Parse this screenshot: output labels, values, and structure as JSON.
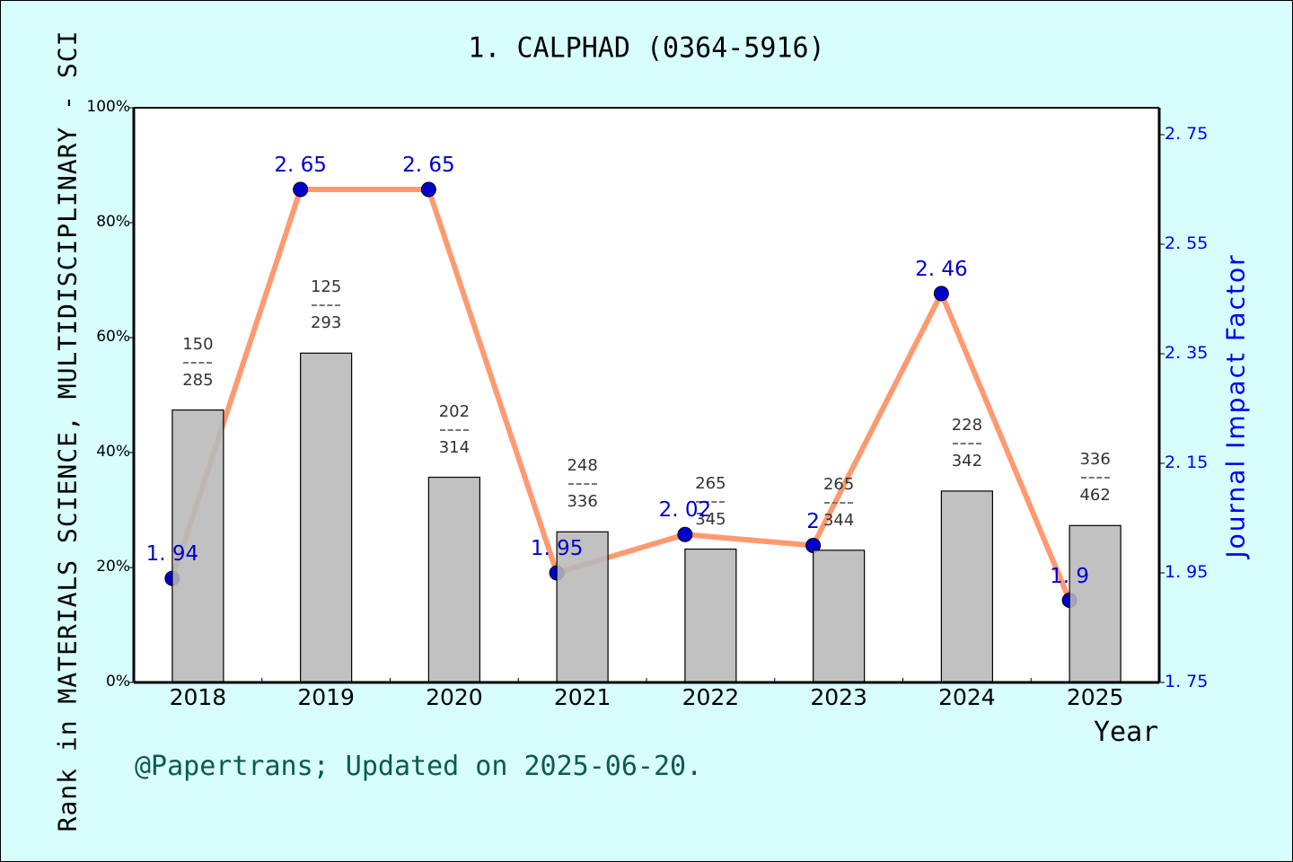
{
  "title": "1. CALPHAD (0364-5916)",
  "left_axis_label": "Rank in MATERIALS SCIENCE, MULTIDISCIPLINARY - SCI",
  "right_axis_label": "Journal Impact Factor",
  "x_axis_label": "Year",
  "footer": "@Papertrans; Updated on 2025-06-20.",
  "colors": {
    "background": "#d7fdfd",
    "plot_background": "#ffffff",
    "bar_fill": "#b8b8b8",
    "line": "#ff9a70",
    "marker": "#0000cc",
    "right_axis": "#0000ee",
    "footer": "#0b5a52"
  },
  "left_ticks": [
    "0%",
    "20%",
    "40%",
    "60%",
    "80%",
    "100%"
  ],
  "right_ticks": [
    "1.75",
    "1.95",
    "2.15",
    "2.35",
    "2.55",
    "2.75"
  ],
  "years": [
    "2018",
    "2019",
    "2020",
    "2021",
    "2022",
    "2023",
    "2024",
    "2025"
  ],
  "fractions": [
    {
      "rank": "150",
      "total": "285"
    },
    {
      "rank": "125",
      "total": "293"
    },
    {
      "rank": "202",
      "total": "314"
    },
    {
      "rank": "248",
      "total": "336"
    },
    {
      "rank": "265",
      "total": "345"
    },
    {
      "rank": "265",
      "total": "344"
    },
    {
      "rank": "228",
      "total": "342"
    },
    {
      "rank": "336",
      "total": "462"
    }
  ],
  "if_labels": [
    "1.94",
    "2.65",
    "2.65",
    "1.95",
    "2.02",
    "2",
    "2.46",
    "1.9"
  ],
  "chart_data": {
    "type": "bar+line",
    "title": "1. CALPHAD (0364-5916)",
    "xlabel": "Year",
    "ylabel": "Rank in MATERIALS SCIENCE, MULTIDISCIPLINARY - SCI",
    "y2label": "Journal Impact Factor",
    "categories": [
      "2018",
      "2019",
      "2020",
      "2021",
      "2022",
      "2023",
      "2024",
      "2025"
    ],
    "series": [
      {
        "name": "Rank percentile (bar)",
        "type": "bar",
        "axis": "left",
        "values": [
          47.4,
          57.3,
          35.7,
          26.2,
          23.2,
          23.0,
          33.3,
          27.3
        ],
        "labels": [
          "150/285",
          "125/293",
          "202/314",
          "248/336",
          "265/345",
          "265/344",
          "228/342",
          "336/462"
        ]
      },
      {
        "name": "Journal Impact Factor (line)",
        "type": "line",
        "axis": "right",
        "values": [
          1.94,
          2.65,
          2.65,
          1.95,
          2.02,
          2.0,
          2.46,
          1.9
        ]
      }
    ],
    "ylim": [
      0,
      100
    ],
    "y2lim": [
      1.75,
      2.75
    ],
    "yticks": [
      "0%",
      "20%",
      "40%",
      "60%",
      "80%",
      "100%"
    ],
    "y2ticks": [
      1.75,
      1.95,
      2.15,
      2.35,
      2.55,
      2.75
    ],
    "grid": false,
    "legend": "none"
  }
}
